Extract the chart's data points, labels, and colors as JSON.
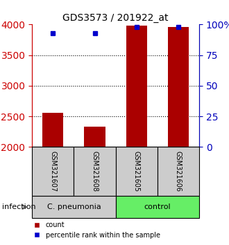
{
  "title": "GDS3573 / 201922_at",
  "samples": [
    "GSM321607",
    "GSM321608",
    "GSM321605",
    "GSM321606"
  ],
  "counts": [
    2560,
    2330,
    3980,
    3960
  ],
  "percentile_ranks": [
    93,
    93,
    98,
    98
  ],
  "ylim_left": [
    2000,
    4000
  ],
  "ylim_right": [
    0,
    100
  ],
  "yticks_left": [
    2000,
    2500,
    3000,
    3500,
    4000
  ],
  "yticks_right": [
    0,
    25,
    50,
    75,
    100
  ],
  "ytick_labels_right": [
    "0",
    "25",
    "50",
    "75",
    "100%"
  ],
  "grid_values": [
    2500,
    3000,
    3500
  ],
  "bar_color": "#AA0000",
  "dot_color": "#0000CC",
  "left_tick_color": "#CC0000",
  "right_tick_color": "#0000BB",
  "groups": [
    {
      "label": "C. pneumonia",
      "color": "#cccccc"
    },
    {
      "label": "control",
      "color": "#66ee66"
    }
  ],
  "infection_label": "infection",
  "legend_count_label": "count",
  "legend_pct_label": "percentile rank within the sample",
  "bar_width": 0.5,
  "fig_width": 3.3,
  "fig_height": 3.54
}
